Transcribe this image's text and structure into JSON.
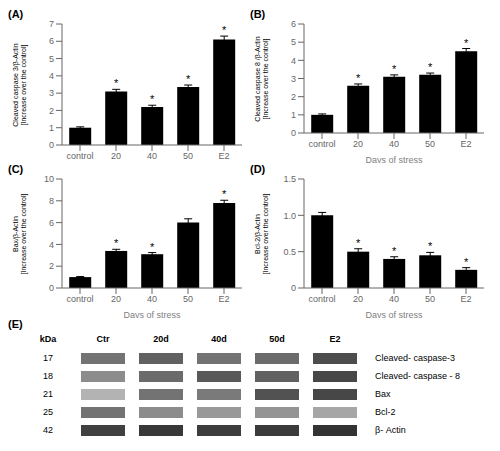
{
  "chart_data": [
    {
      "type": "bar",
      "title": "(A)",
      "categories": [
        "control",
        "20",
        "40",
        "50",
        "E2"
      ],
      "values": [
        1.0,
        3.1,
        2.2,
        3.35,
        6.1
      ],
      "errors": [
        0.05,
        0.12,
        0.1,
        0.12,
        0.2
      ],
      "annotations": [
        null,
        "*",
        "*",
        "*",
        "*"
      ],
      "ylabel": "Cleaved caspase 3/β-Actin\n[Increase over the control]",
      "ylim": [
        0,
        7
      ],
      "yticks": [
        0,
        1,
        2,
        3,
        4,
        5,
        6,
        7
      ],
      "color": "#000000"
    },
    {
      "type": "bar",
      "title": "(B)",
      "categories": [
        "control",
        "20",
        "40",
        "50",
        "E2"
      ],
      "values": [
        1.0,
        2.6,
        3.1,
        3.2,
        4.5
      ],
      "errors": [
        0.05,
        0.1,
        0.1,
        0.1,
        0.15
      ],
      "annotations": [
        null,
        "*",
        "*",
        "*",
        "*"
      ],
      "ylabel": "Cleaved caspase 8 /β-Actin\n[Increase over the control]",
      "xlabel": "Days of stress",
      "ylim": [
        0,
        6
      ],
      "yticks": [
        0,
        1,
        2,
        3,
        4,
        5,
        6
      ],
      "color": "#000000"
    },
    {
      "type": "bar",
      "title": "(C)",
      "categories": [
        "control",
        "20",
        "40",
        "50",
        "E2"
      ],
      "values": [
        1.0,
        3.4,
        3.1,
        6.0,
        7.8
      ],
      "errors": [
        0.05,
        0.15,
        0.15,
        0.35,
        0.25
      ],
      "annotations": [
        null,
        "*",
        "*",
        null,
        "*"
      ],
      "ylabel": "Bax/β-Actin\n[Increase over the control]",
      "xlabel": "Days of stress",
      "ylim": [
        0,
        10
      ],
      "yticks": [
        0,
        2,
        4,
        6,
        8,
        10
      ],
      "color": "#000000"
    },
    {
      "type": "bar",
      "title": "(D)",
      "categories": [
        "control",
        "20",
        "40",
        "50",
        "E2"
      ],
      "values": [
        1.0,
        0.5,
        0.4,
        0.45,
        0.25
      ],
      "errors": [
        0.04,
        0.04,
        0.03,
        0.04,
        0.03
      ],
      "annotations": [
        null,
        "*",
        "*",
        "*",
        "*"
      ],
      "ylabel": "Bcl-2/β-Actin\n[Increase over the control]",
      "xlabel": "Days of stress",
      "ylim": [
        0,
        1.5
      ],
      "yticks": [
        0,
        0.5,
        {
          "value": 1,
          "label": "1.0"
        },
        1.5
      ],
      "color": "#000000"
    },
    {
      "type": "blot",
      "title": "(E)",
      "columns": [
        "kDa",
        "Ctr",
        "20d",
        "40d",
        "50d",
        "E2"
      ],
      "row_labels": [
        "17",
        "18",
        "21",
        "25",
        "42"
      ],
      "rows": [
        "Cleaved- caspase-3",
        "Cleaved- caspase - 8",
        "Bax",
        "Bcl-2",
        "β- Actin"
      ],
      "cells": [
        [
          0.55,
          0.62,
          0.55,
          0.58,
          0.7
        ],
        [
          0.45,
          0.58,
          0.65,
          0.62,
          0.72
        ],
        [
          0.3,
          0.55,
          0.52,
          0.68,
          0.72
        ],
        [
          0.55,
          0.45,
          0.4,
          0.42,
          0.35
        ],
        [
          0.75,
          0.78,
          0.76,
          0.77,
          0.8
        ]
      ]
    }
  ]
}
